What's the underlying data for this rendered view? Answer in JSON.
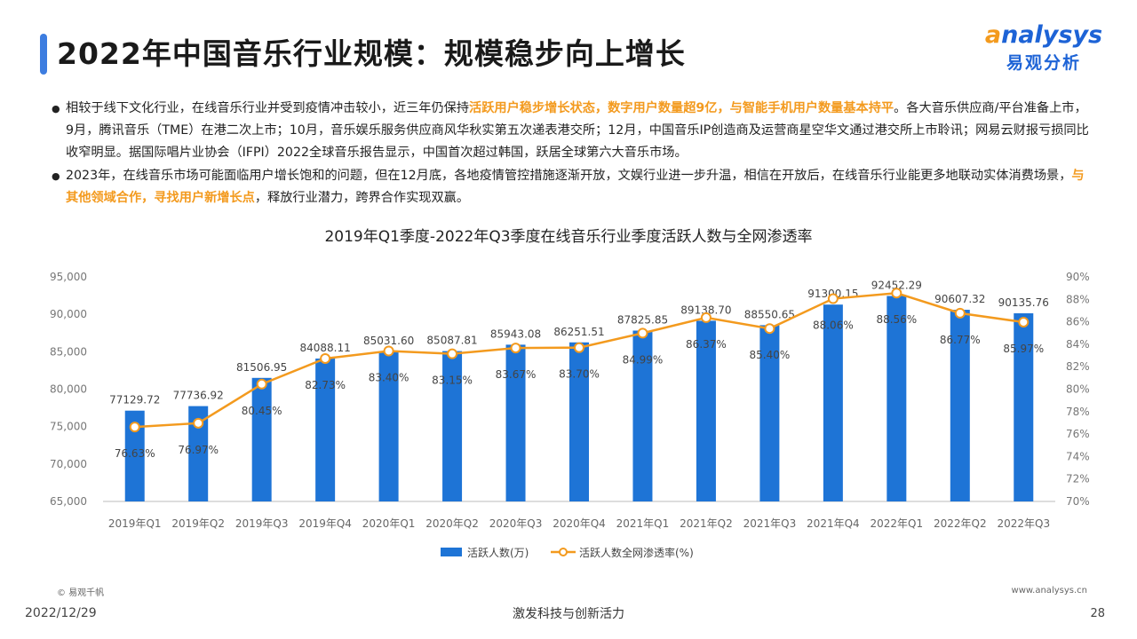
{
  "header": {
    "title": "2022年中国音乐行业规模：规模稳步向上增长",
    "logo_en_a": "a",
    "logo_en_rest": "nalysys",
    "logo_cn": "易观分析"
  },
  "bullets": [
    {
      "p1": "相较于线下文化行业，在线音乐行业并受到疫情冲击较小，近三年仍保持",
      "h1": "活跃用户稳步增长状态，数字用户数量超9亿，与智能手机用户数量基本持平",
      "p2": "。各大音乐供应商/平台准备上市，9月，腾讯音乐（TME）在港二次上市；10月，音乐娱乐服务供应商风华秋实第五次递表港交所；12月，中国音乐IP创造商及运营商星空华文通过港交所上市聆讯；网易云财报亏损同比收窄明显。据国际唱片业协会（IFPI）2022全球音乐报告显示，中国首次超过韩国，跃居全球第六大音乐市场。"
    },
    {
      "p1": "2023年，在线音乐市场可能面临用户增长饱和的问题，但在12月底，各地疫情管控措施逐渐开放，文娱行业进一步升温，相信在开放后，在线音乐行业能更多地联动实体消费场景，",
      "h1": "与其他领域合作，寻找用户新增长点",
      "p2": "，释放行业潜力，跨界合作实现双赢。"
    }
  ],
  "chart_data": {
    "type": "bar+line",
    "title": "2019年Q1季度-2022年Q3季度在线音乐行业季度活跃人数与全网渗透率",
    "categories": [
      "2019年Q1",
      "2019年Q2",
      "2019年Q3",
      "2019年Q4",
      "2020年Q1",
      "2020年Q2",
      "2020年Q3",
      "2020年Q4",
      "2021年Q1",
      "2021年Q2",
      "2021年Q3",
      "2021年Q4",
      "2022年Q1",
      "2022年Q2",
      "2022年Q3"
    ],
    "series": [
      {
        "name": "活跃人数(万)",
        "type": "bar",
        "axis": "left",
        "color": "#1e74d6",
        "values": [
          77129.72,
          77736.92,
          81506.95,
          84088.11,
          85031.6,
          85087.81,
          85943.08,
          86251.51,
          87825.85,
          89138.7,
          88550.65,
          91300.15,
          92452.29,
          90607.32,
          90135.76
        ],
        "labels": [
          "77129.72",
          "77736.92",
          "81506.95",
          "84088.11",
          "85031.60",
          "85087.81",
          "85943.08",
          "86251.51",
          "87825.85",
          "89138.70",
          "88550.65",
          "91300.15",
          "92452.29",
          "90607.32",
          "90135.76"
        ]
      },
      {
        "name": "活跃人数全网渗透率(%)",
        "type": "line",
        "axis": "right",
        "color": "#f39a1e",
        "values": [
          76.63,
          76.97,
          80.45,
          82.73,
          83.4,
          83.15,
          83.67,
          83.7,
          84.99,
          86.37,
          85.4,
          88.06,
          88.56,
          86.77,
          85.97
        ],
        "labels": [
          "76.63%",
          "76.97%",
          "80.45%",
          "82.73%",
          "83.40%",
          "83.15%",
          "83.67%",
          "83.70%",
          "84.99%",
          "86.37%",
          "85.40%",
          "88.06%",
          "88.56%",
          "86.77%",
          "85.97%"
        ]
      }
    ],
    "y_left": {
      "min": 65000,
      "max": 95000,
      "ticks": [
        65000,
        70000,
        75000,
        80000,
        85000,
        90000,
        95000
      ],
      "tick_labels": [
        "65,000",
        "70,000",
        "75,000",
        "80,000",
        "85,000",
        "90,000",
        "95,000"
      ]
    },
    "y_right": {
      "min": 70,
      "max": 90,
      "ticks": [
        70,
        72,
        74,
        76,
        78,
        80,
        82,
        84,
        86,
        88,
        90
      ],
      "tick_labels": [
        "70%",
        "72%",
        "74%",
        "76%",
        "78%",
        "80%",
        "82%",
        "84%",
        "86%",
        "88%",
        "90%"
      ]
    },
    "grid": false,
    "legend": "bottom-center"
  },
  "footer": {
    "source_left": "© 易观千帆",
    "source_right": "www.analysys.cn",
    "date": "2022/12/29",
    "slogan": "激发科技与创新活力",
    "page": "28"
  }
}
